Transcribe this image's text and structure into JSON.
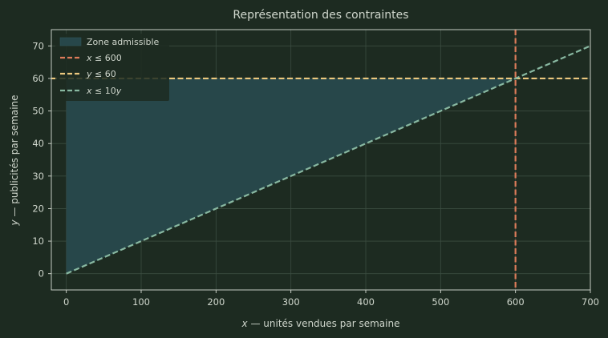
{
  "chart_data": {
    "type": "area",
    "title": "Représentation des contraintes",
    "xlabel": {
      "var": "x",
      "rest": " — unités vendues par semaine"
    },
    "ylabel": {
      "var": "y",
      "rest": " — publicités par semaine"
    },
    "xlim": [
      -20,
      700
    ],
    "ylim": [
      -5,
      75
    ],
    "xticks": [
      0,
      100,
      200,
      300,
      400,
      500,
      600,
      700
    ],
    "yticks": [
      0,
      10,
      20,
      30,
      40,
      50,
      60,
      70
    ],
    "grid": true,
    "legend_position": "top-left",
    "feasible_region": {
      "name": "Zone admissible",
      "polygon": [
        [
          0,
          0
        ],
        [
          600,
          60
        ],
        [
          0,
          60
        ]
      ],
      "color": "#27474a"
    },
    "constraints": [
      {
        "kind": "vertical",
        "x": 600,
        "label_var": "x",
        "label_rest": " ≤ 600",
        "color": "#dd7b5a"
      },
      {
        "kind": "horizontal",
        "y": 60,
        "label_var": "y",
        "label_rest": " ≤ 60",
        "color": "#ecc87e"
      },
      {
        "kind": "line",
        "x": [
          0,
          700
        ],
        "y": [
          0,
          70
        ],
        "label_var": "x",
        "label_rest": " ≤ 10",
        "label_var2": "y",
        "color": "#88b8a1"
      }
    ]
  }
}
